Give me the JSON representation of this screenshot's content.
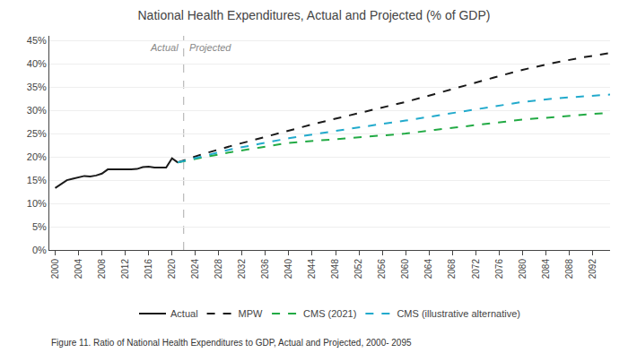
{
  "chart_data": {
    "type": "line",
    "title": "National Health Expenditures, Actual and Projected (% of GDP)",
    "caption": "Figure 11. Ratio of National Health Expenditures to GDP, Actual and Projected, 2000- 2095",
    "divider": 2022,
    "annotations": [
      {
        "text": "Actual",
        "x": 2022,
        "side": "left"
      },
      {
        "text": "Projected",
        "x": 2022,
        "side": "right"
      }
    ],
    "xlim": [
      1999,
      2095
    ],
    "xticks": [
      2000,
      2004,
      2008,
      2012,
      2016,
      2020,
      2024,
      2028,
      2032,
      2036,
      2040,
      2044,
      2048,
      2052,
      2056,
      2060,
      2064,
      2068,
      2072,
      2076,
      2080,
      2084,
      2088,
      2092
    ],
    "ylim": [
      0,
      46
    ],
    "yticks": [
      {
        "value": 0,
        "label": "0%"
      },
      {
        "value": 5,
        "label": "5%"
      },
      {
        "value": 10,
        "label": "10%"
      },
      {
        "value": 15,
        "label": "15%"
      },
      {
        "value": 20,
        "label": "20%"
      },
      {
        "value": 25,
        "label": "25%"
      },
      {
        "value": 30,
        "label": "30%"
      },
      {
        "value": 35,
        "label": "35%"
      },
      {
        "value": 40,
        "label": "40%"
      },
      {
        "value": 45,
        "label": "45%"
      }
    ],
    "grid": true,
    "legend": "bottom",
    "series": [
      {
        "name": "Actual",
        "color": "#1a1a1a",
        "line_style": "solid",
        "x": [
          2000,
          2001,
          2002,
          2003,
          2004,
          2005,
          2006,
          2007,
          2008,
          2009,
          2010,
          2011,
          2012,
          2013,
          2014,
          2015,
          2016,
          2017,
          2018,
          2019,
          2020,
          2021
        ],
        "values": [
          13.3,
          14.1,
          15.0,
          15.3,
          15.6,
          15.9,
          15.8,
          16.0,
          16.4,
          17.3,
          17.3,
          17.3,
          17.2,
          17.3,
          17.4,
          17.8,
          17.9,
          17.7,
          17.7,
          17.7,
          19.7,
          18.8
        ]
      },
      {
        "name": "MPW",
        "color": "#1a1a1a",
        "line_style": "dashed",
        "x": [
          2021,
          2022,
          2023,
          2025,
          2030,
          2035,
          2040,
          2045,
          2050,
          2055,
          2060,
          2065,
          2070,
          2075,
          2080,
          2085,
          2090,
          2095
        ],
        "values": [
          18.8,
          19.2,
          19.7,
          20.5,
          22.3,
          24.0,
          25.7,
          27.3,
          28.8,
          30.3,
          31.8,
          33.5,
          35.3,
          37.0,
          38.7,
          40.1,
          41.3,
          42.3
        ]
      },
      {
        "name": "CMS (2021)",
        "color": "#22aa44",
        "line_style": "dashed",
        "x": [
          2021,
          2022,
          2023,
          2025,
          2030,
          2035,
          2040,
          2045,
          2050,
          2055,
          2060,
          2065,
          2070,
          2075,
          2080,
          2085,
          2090,
          2095
        ],
        "values": [
          18.8,
          19.0,
          19.3,
          19.8,
          21.0,
          22.0,
          23.0,
          23.5,
          24.0,
          24.5,
          25.0,
          25.8,
          26.5,
          27.3,
          28.0,
          28.5,
          29.0,
          29.5
        ]
      },
      {
        "name": "CMS (illustrative alternative)",
        "color": "#22aacc",
        "line_style": "dashed",
        "x": [
          2021,
          2022,
          2023,
          2025,
          2030,
          2035,
          2040,
          2045,
          2050,
          2055,
          2060,
          2065,
          2070,
          2075,
          2080,
          2085,
          2090,
          2095
        ],
        "values": [
          18.8,
          19.1,
          19.5,
          20.1,
          21.6,
          22.8,
          24.0,
          25.0,
          26.0,
          26.9,
          27.8,
          28.8,
          29.8,
          30.8,
          31.8,
          32.5,
          33.0,
          33.4
        ]
      }
    ]
  }
}
